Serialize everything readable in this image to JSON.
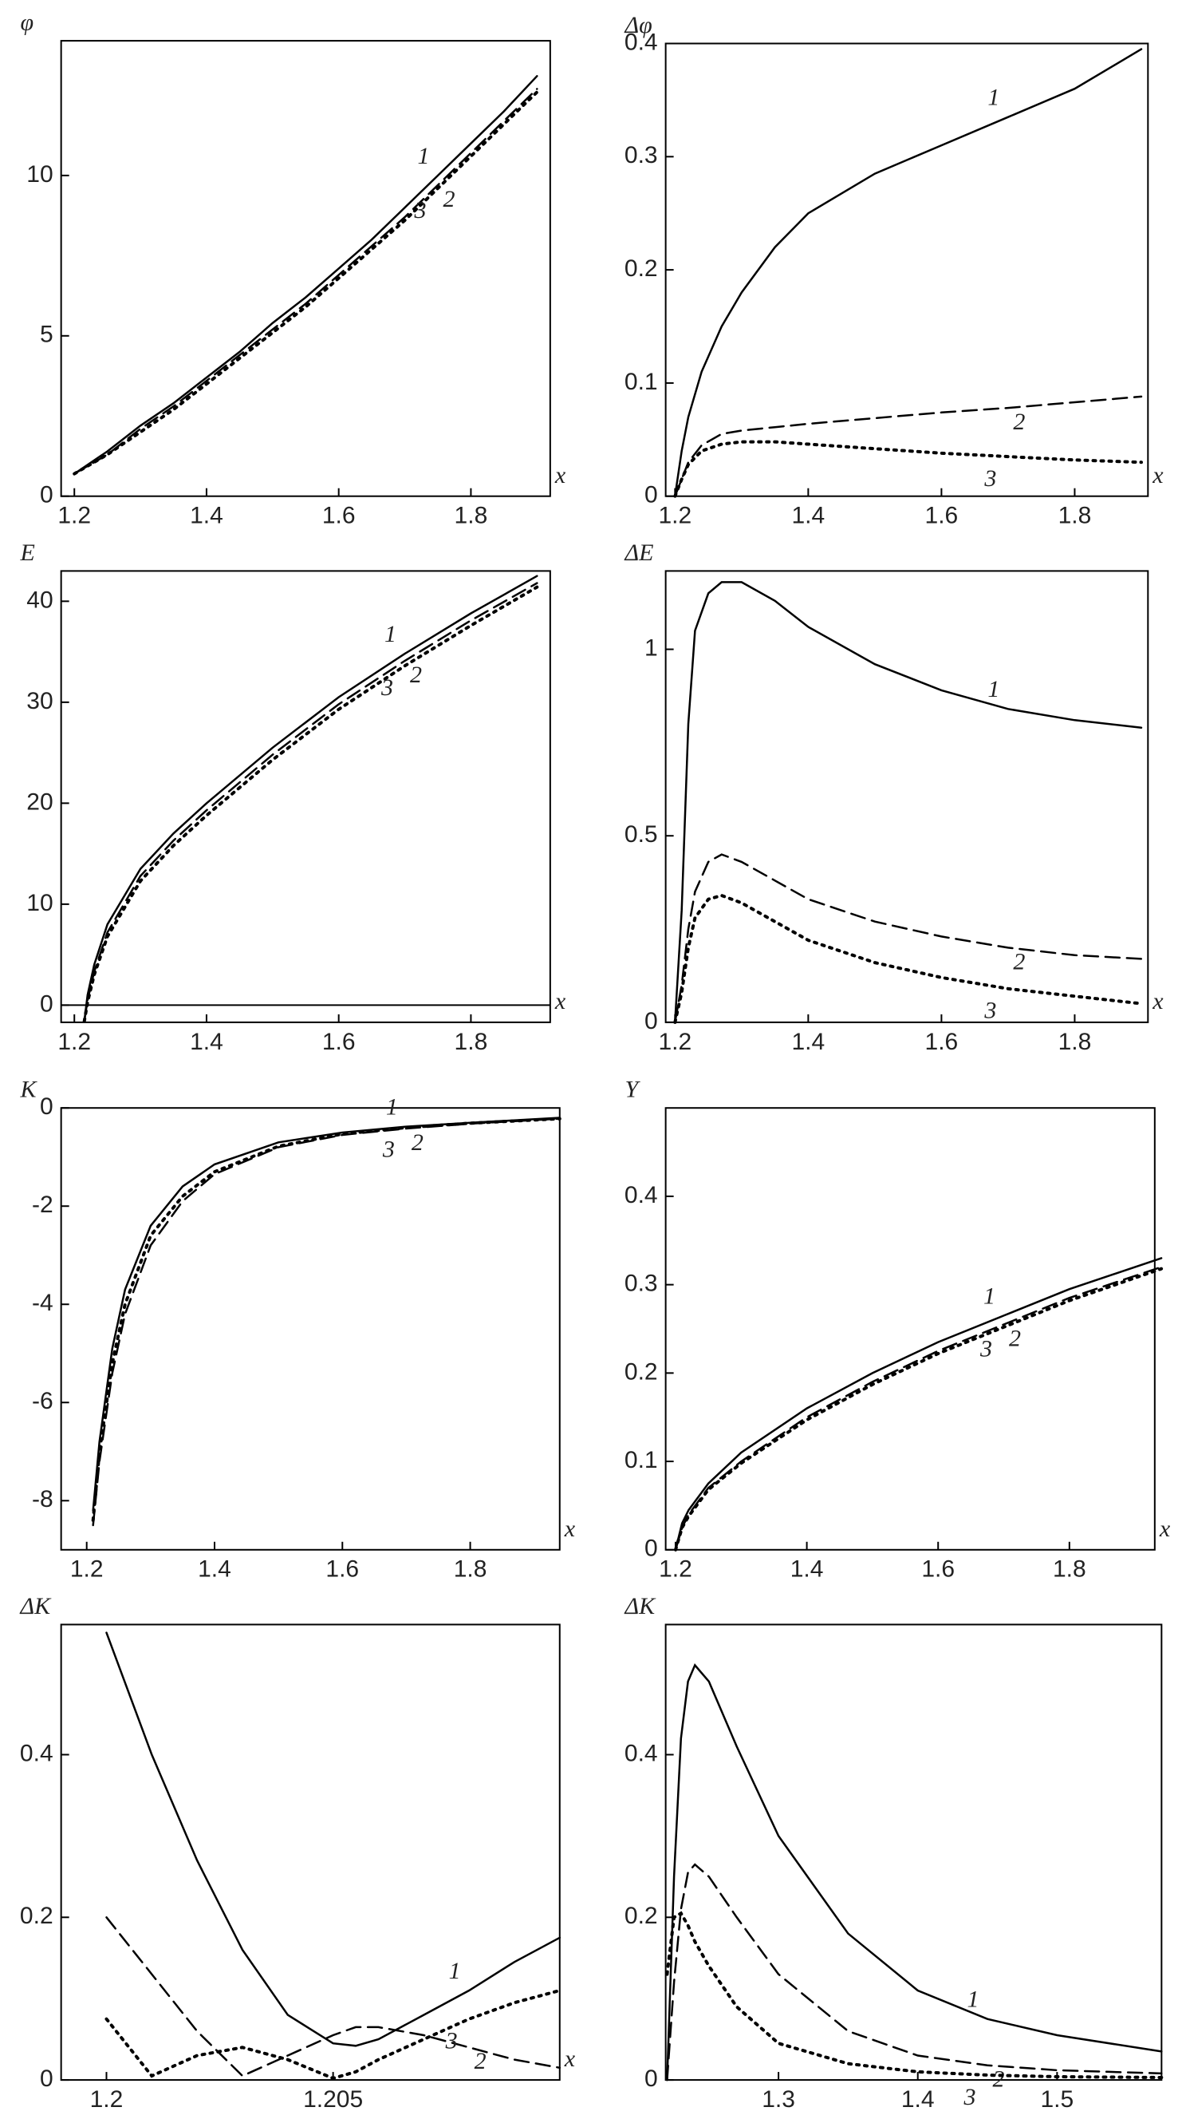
{
  "chart_data": [
    {
      "type": "line",
      "y_label": "φ",
      "x_label": "x",
      "x": [
        1.2,
        1.25,
        1.3,
        1.35,
        1.4,
        1.45,
        1.5,
        1.55,
        1.6,
        1.65,
        1.7,
        1.75,
        1.8,
        1.85,
        1.9
      ],
      "series": [
        {
          "name": "1",
          "color": "#000000",
          "line_style": "solid",
          "values": [
            0.7,
            1.4,
            2.2,
            2.9,
            3.7,
            4.5,
            5.4,
            6.2,
            7.1,
            8.0,
            9.0,
            10.0,
            11.0,
            12.0,
            13.1
          ]
        },
        {
          "name": "2",
          "color": "#000000",
          "line_style": "dashed",
          "values": [
            0.7,
            1.3,
            2.1,
            2.8,
            3.6,
            4.4,
            5.2,
            6.0,
            6.9,
            7.8,
            8.7,
            9.7,
            10.7,
            11.7,
            12.7
          ]
        },
        {
          "name": "3",
          "color": "#000000",
          "line_style": "dotted",
          "values": [
            0.7,
            1.3,
            2.0,
            2.7,
            3.5,
            4.3,
            5.1,
            5.9,
            6.8,
            7.7,
            8.6,
            9.6,
            10.6,
            11.6,
            12.6
          ]
        }
      ],
      "xlim": [
        1.18,
        1.92
      ],
      "xticks": [
        1.2,
        1.4,
        1.6,
        1.8
      ],
      "ylim": [
        0,
        14.2
      ],
      "yticks": [
        0,
        5,
        10
      ]
    },
    {
      "type": "line",
      "y_label": "Δφ",
      "x_label": "x",
      "x": [
        1.2,
        1.21,
        1.22,
        1.24,
        1.27,
        1.3,
        1.35,
        1.4,
        1.5,
        1.6,
        1.7,
        1.8,
        1.9
      ],
      "series": [
        {
          "name": "1",
          "color": "#000000",
          "line_style": "solid",
          "values": [
            0,
            0.04,
            0.07,
            0.11,
            0.15,
            0.18,
            0.22,
            0.25,
            0.285,
            0.31,
            0.335,
            0.36,
            0.395
          ]
        },
        {
          "name": "2",
          "color": "#000000",
          "line_style": "dashed",
          "values": [
            0,
            0.015,
            0.03,
            0.045,
            0.055,
            0.058,
            0.061,
            0.064,
            0.069,
            0.074,
            0.078,
            0.083,
            0.088
          ]
        },
        {
          "name": "3",
          "color": "#000000",
          "line_style": "dotted",
          "values": [
            0,
            0.015,
            0.028,
            0.04,
            0.046,
            0.048,
            0.048,
            0.046,
            0.042,
            0.038,
            0.035,
            0.032,
            0.03
          ]
        }
      ],
      "xlim": [
        1.186,
        1.91
      ],
      "xticks": [
        1.2,
        1.4,
        1.6,
        1.8
      ],
      "ylim": [
        0,
        0.4
      ],
      "yticks": [
        0,
        0.1,
        0.2,
        0.3,
        0.4
      ]
    },
    {
      "type": "line",
      "y_label": "E",
      "x_label": "x",
      "zero_line": true,
      "x": [
        1.215,
        1.22,
        1.23,
        1.25,
        1.3,
        1.35,
        1.4,
        1.5,
        1.6,
        1.7,
        1.8,
        1.9
      ],
      "series": [
        {
          "name": "1",
          "color": "#000000",
          "line_style": "solid",
          "values": [
            -1.6,
            1,
            4,
            8,
            13.5,
            17,
            20,
            25.5,
            30.5,
            34.8,
            38.8,
            42.5
          ]
        },
        {
          "name": "2",
          "color": "#000000",
          "line_style": "dashed",
          "values": [
            -1.6,
            0.5,
            3.3,
            7.2,
            12.8,
            16.3,
            19.3,
            24.8,
            29.8,
            34.1,
            38.1,
            41.8
          ]
        },
        {
          "name": "3",
          "color": "#000000",
          "line_style": "dotted",
          "values": [
            -1.6,
            0.3,
            3,
            6.8,
            12.3,
            15.8,
            18.8,
            24.3,
            29.3,
            33.6,
            37.6,
            41.4
          ]
        }
      ],
      "xlim": [
        1.18,
        1.92
      ],
      "xticks": [
        1.2,
        1.4,
        1.6,
        1.8
      ],
      "ylim": [
        -1.7,
        43
      ],
      "yticks": [
        0,
        10,
        20,
        30,
        40
      ]
    },
    {
      "type": "line",
      "y_label": "ΔE",
      "x_label": "x",
      "x": [
        1.2,
        1.21,
        1.22,
        1.23,
        1.25,
        1.27,
        1.3,
        1.35,
        1.4,
        1.5,
        1.6,
        1.7,
        1.8,
        1.9
      ],
      "series": [
        {
          "name": "1",
          "color": "#000000",
          "line_style": "solid",
          "values": [
            0,
            0.3,
            0.8,
            1.05,
            1.15,
            1.18,
            1.18,
            1.13,
            1.06,
            0.96,
            0.89,
            0.84,
            0.81,
            0.79
          ]
        },
        {
          "name": "2",
          "color": "#000000",
          "line_style": "dashed",
          "values": [
            0,
            0.1,
            0.25,
            0.35,
            0.43,
            0.45,
            0.43,
            0.38,
            0.33,
            0.27,
            0.23,
            0.2,
            0.18,
            0.17
          ]
        },
        {
          "name": "3",
          "color": "#000000",
          "line_style": "dotted",
          "values": [
            0,
            0.08,
            0.2,
            0.28,
            0.33,
            0.34,
            0.32,
            0.27,
            0.22,
            0.16,
            0.12,
            0.09,
            0.07,
            0.05
          ]
        }
      ],
      "xlim": [
        1.186,
        1.91
      ],
      "xticks": [
        1.2,
        1.4,
        1.6,
        1.8
      ],
      "ylim": [
        0,
        1.21
      ],
      "yticks": [
        0,
        0.5,
        1
      ]
    },
    {
      "type": "line",
      "y_label": "K",
      "x_label": "x",
      "x": [
        1.21,
        1.22,
        1.24,
        1.26,
        1.3,
        1.35,
        1.4,
        1.5,
        1.6,
        1.7,
        1.8,
        1.94
      ],
      "series": [
        {
          "name": "1",
          "color": "#000000",
          "line_style": "solid",
          "values": [
            -8.2,
            -6.8,
            -4.9,
            -3.7,
            -2.4,
            -1.6,
            -1.15,
            -0.7,
            -0.5,
            -0.38,
            -0.3,
            -0.2
          ]
        },
        {
          "name": "2",
          "color": "#000000",
          "line_style": "dashed",
          "values": [
            -8.5,
            -7.2,
            -5.4,
            -4.2,
            -2.8,
            -1.9,
            -1.35,
            -0.8,
            -0.55,
            -0.42,
            -0.32,
            -0.22
          ]
        },
        {
          "name": "3",
          "color": "#000000",
          "line_style": "dotted",
          "values": [
            -8.4,
            -7.0,
            -5.2,
            -4.0,
            -2.6,
            -1.8,
            -1.3,
            -0.78,
            -0.53,
            -0.4,
            -0.31,
            -0.22
          ]
        }
      ],
      "xlim": [
        1.16,
        1.94
      ],
      "xticks": [
        1.2,
        1.4,
        1.6,
        1.8
      ],
      "ylim": [
        -9,
        0
      ],
      "yticks": [
        0,
        -2,
        -4,
        -6,
        -8
      ]
    },
    {
      "type": "line",
      "y_label": "Y",
      "x_label": "x",
      "x": [
        1.2,
        1.21,
        1.22,
        1.25,
        1.3,
        1.4,
        1.5,
        1.6,
        1.7,
        1.8,
        1.94
      ],
      "series": [
        {
          "name": "1",
          "color": "#000000",
          "line_style": "solid",
          "values": [
            0,
            0.03,
            0.045,
            0.075,
            0.11,
            0.16,
            0.2,
            0.235,
            0.265,
            0.295,
            0.33
          ]
        },
        {
          "name": "2",
          "color": "#000000",
          "line_style": "dashed",
          "values": [
            0,
            0.025,
            0.04,
            0.07,
            0.1,
            0.15,
            0.19,
            0.225,
            0.255,
            0.285,
            0.32
          ]
        },
        {
          "name": "3",
          "color": "#000000",
          "line_style": "dotted",
          "values": [
            0,
            0.025,
            0.038,
            0.068,
            0.098,
            0.147,
            0.187,
            0.222,
            0.252,
            0.282,
            0.318
          ]
        }
      ],
      "xlim": [
        1.185,
        1.93
      ],
      "xticks": [
        1.2,
        1.4,
        1.6,
        1.8
      ],
      "ylim": [
        0,
        0.5
      ],
      "yticks": [
        0,
        0.1,
        0.2,
        0.3,
        0.4
      ]
    },
    {
      "type": "line",
      "y_label": "ΔK",
      "x_label": "x",
      "x": [
        1.2,
        1.201,
        1.202,
        1.203,
        1.204,
        1.205,
        1.2055,
        1.206,
        1.207,
        1.208,
        1.209,
        1.21
      ],
      "series": [
        {
          "name": "1",
          "color": "#000000",
          "line_style": "solid",
          "values": [
            0.55,
            0.4,
            0.27,
            0.16,
            0.08,
            0.045,
            0.042,
            0.05,
            0.08,
            0.11,
            0.145,
            0.175
          ]
        },
        {
          "name": "2",
          "color": "#000000",
          "line_style": "dashed",
          "values": [
            0.2,
            0.13,
            0.06,
            0.005,
            0.03,
            0.055,
            0.065,
            0.065,
            0.055,
            0.04,
            0.025,
            0.015
          ]
        },
        {
          "name": "3",
          "color": "#000000",
          "line_style": "dotted",
          "values": [
            0.075,
            0.005,
            0.03,
            0.04,
            0.025,
            0.002,
            0.01,
            0.025,
            0.05,
            0.075,
            0.095,
            0.11
          ]
        }
      ],
      "xlim": [
        1.199,
        1.21
      ],
      "xticks": [
        1.2,
        1.205
      ],
      "ylim": [
        0,
        0.56
      ],
      "yticks": [
        0,
        0.2,
        0.4
      ]
    },
    {
      "type": "line",
      "y_label": "ΔK",
      "x": [
        1.22,
        1.225,
        1.23,
        1.235,
        1.24,
        1.25,
        1.27,
        1.3,
        1.35,
        1.4,
        1.45,
        1.5,
        1.575
      ],
      "series": [
        {
          "name": "1",
          "color": "#000000",
          "line_style": "solid",
          "values": [
            0,
            0.25,
            0.42,
            0.49,
            0.51,
            0.49,
            0.41,
            0.3,
            0.18,
            0.11,
            0.075,
            0.055,
            0.035
          ]
        },
        {
          "name": "2",
          "color": "#000000",
          "line_style": "dashed",
          "values": [
            0,
            0.12,
            0.21,
            0.255,
            0.265,
            0.25,
            0.2,
            0.13,
            0.06,
            0.03,
            0.018,
            0.012,
            0.008
          ]
        },
        {
          "name": "3",
          "color": "#000000",
          "line_style": "dotted",
          "values": [
            0.13,
            0.2,
            0.205,
            0.19,
            0.17,
            0.14,
            0.09,
            0.045,
            0.02,
            0.01,
            0.006,
            0.004,
            0.003
          ]
        }
      ],
      "xlim": [
        1.219,
        1.575
      ],
      "xticks": [
        1.3,
        1.4,
        1.5
      ],
      "ylim": [
        0,
        0.56
      ],
      "yticks": [
        0,
        0.2,
        0.4
      ]
    }
  ]
}
